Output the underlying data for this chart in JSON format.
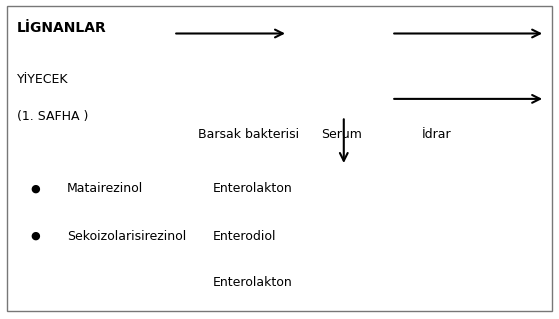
{
  "title": "LİGNANLAR",
  "subtitle1": "YİYECEK",
  "subtitle2": "(1. SAFHA )",
  "bullet1": "Matairezinol",
  "bullet2": "Sekoizolarisirezinol",
  "label_barsak": "Barsak bakterisi",
  "label_serum": "Serum",
  "label_idrar": "İdrar",
  "label_enterolakton1": "Enterolakton",
  "label_enterodiol": "Enterodiol",
  "label_enterolakton2": "Enterolakton",
  "border_color": "#888888",
  "text_color": "#000000",
  "bg_color": "#ffffff",
  "fontsize_title": 10,
  "fontsize_body": 9
}
